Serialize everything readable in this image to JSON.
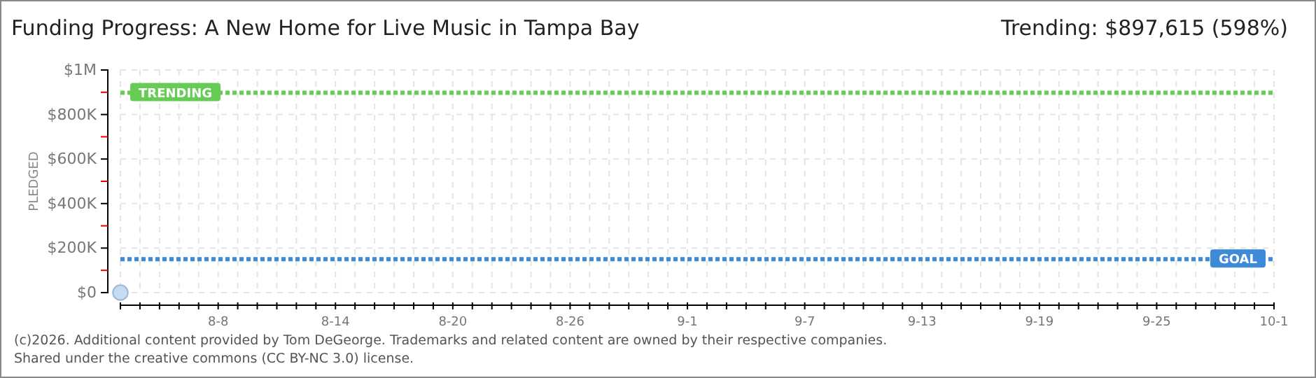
{
  "chart_data": {
    "type": "scatter",
    "title": "Funding Progress: A New Home for Live Music in Tampa Bay",
    "subtitle": "Trending: $897,615 (598%)",
    "ylabel": "PLEDGED",
    "annotations": [
      "(c)2026. Additional content provided by Tom DeGeorge. Trademarks and related content are owned by their respective companies.",
      "Shared under the creative commons (CC BY-NC 3.0) license."
    ],
    "x": [
      "--08-03"
    ],
    "series": [
      {
        "color": "#c6dcf2",
        "values": [
          0
        ]
      }
    ],
    "marker": "circle",
    "grid": true,
    "ylim": [
      0,
      1000000
    ],
    "yticks": [
      {
        "value": 0,
        "label": "$0"
      },
      {
        "value": 100000,
        "label": null
      },
      {
        "value": 200000,
        "label": "$200K"
      },
      {
        "value": 300000,
        "label": null
      },
      {
        "value": 400000,
        "label": "$400K"
      },
      {
        "value": 500000,
        "label": null
      },
      {
        "value": 600000,
        "label": "$600K"
      },
      {
        "value": 700000,
        "label": null
      },
      {
        "value": 800000,
        "label": "$800K"
      },
      {
        "value": 900000,
        "label": null
      },
      {
        "value": 1000000,
        "label": "$1M"
      }
    ],
    "xlim": [
      "--08-03",
      "--10-01"
    ],
    "xticks": [
      {
        "value": "--08-03",
        "label": null
      },
      {
        "value": "--08-04",
        "label": null
      },
      {
        "value": "--08-05",
        "label": null
      },
      {
        "value": "--08-06",
        "label": null
      },
      {
        "value": "--08-07",
        "label": null
      },
      {
        "value": "--08-08",
        "label": "8-8"
      },
      {
        "value": "--08-09",
        "label": null
      },
      {
        "value": "--08-10",
        "label": null
      },
      {
        "value": "--08-11",
        "label": null
      },
      {
        "value": "--08-12",
        "label": null
      },
      {
        "value": "--08-13",
        "label": null
      },
      {
        "value": "--08-14",
        "label": "8-14"
      },
      {
        "value": "--08-15",
        "label": null
      },
      {
        "value": "--08-16",
        "label": null
      },
      {
        "value": "--08-17",
        "label": null
      },
      {
        "value": "--08-18",
        "label": null
      },
      {
        "value": "--08-19",
        "label": null
      },
      {
        "value": "--08-20",
        "label": "8-20"
      },
      {
        "value": "--08-21",
        "label": null
      },
      {
        "value": "--08-22",
        "label": null
      },
      {
        "value": "--08-23",
        "label": null
      },
      {
        "value": "--08-24",
        "label": null
      },
      {
        "value": "--08-25",
        "label": null
      },
      {
        "value": "--08-26",
        "label": "8-26"
      },
      {
        "value": "--08-27",
        "label": null
      },
      {
        "value": "--08-28",
        "label": null
      },
      {
        "value": "--08-29",
        "label": null
      },
      {
        "value": "--08-30",
        "label": null
      },
      {
        "value": "--08-31",
        "label": null
      },
      {
        "value": "--09-01",
        "label": "9-1"
      },
      {
        "value": "--09-02",
        "label": null
      },
      {
        "value": "--09-03",
        "label": null
      },
      {
        "value": "--09-04",
        "label": null
      },
      {
        "value": "--09-05",
        "label": null
      },
      {
        "value": "--09-06",
        "label": null
      },
      {
        "value": "--09-07",
        "label": "9-7"
      },
      {
        "value": "--09-08",
        "label": null
      },
      {
        "value": "--09-09",
        "label": null
      },
      {
        "value": "--09-10",
        "label": null
      },
      {
        "value": "--09-11",
        "label": null
      },
      {
        "value": "--09-12",
        "label": null
      },
      {
        "value": "--09-13",
        "label": "9-13"
      },
      {
        "value": "--09-14",
        "label": null
      },
      {
        "value": "--09-15",
        "label": null
      },
      {
        "value": "--09-16",
        "label": null
      },
      {
        "value": "--09-17",
        "label": null
      },
      {
        "value": "--09-18",
        "label": null
      },
      {
        "value": "--09-19",
        "label": "9-19"
      },
      {
        "value": "--09-20",
        "label": null
      },
      {
        "value": "--09-21",
        "label": null
      },
      {
        "value": "--09-22",
        "label": null
      },
      {
        "value": "--09-23",
        "label": null
      },
      {
        "value": "--09-24",
        "label": null
      },
      {
        "value": "--09-25",
        "label": "9-25"
      },
      {
        "value": "--09-26",
        "label": null
      },
      {
        "value": "--09-27",
        "label": null
      },
      {
        "value": "--09-28",
        "label": null
      },
      {
        "value": "--09-29",
        "label": null
      },
      {
        "value": "--09-30",
        "label": null
      },
      {
        "value": "--10-01",
        "label": "10-1"
      }
    ],
    "ref_lines": [
      {
        "axis": "y",
        "value": 897615,
        "label": "TRENDING",
        "color": "#66cc55"
      },
      {
        "axis": "y",
        "value": 150000,
        "label": "GOAL",
        "color": "#3d8ad8"
      }
    ]
  }
}
